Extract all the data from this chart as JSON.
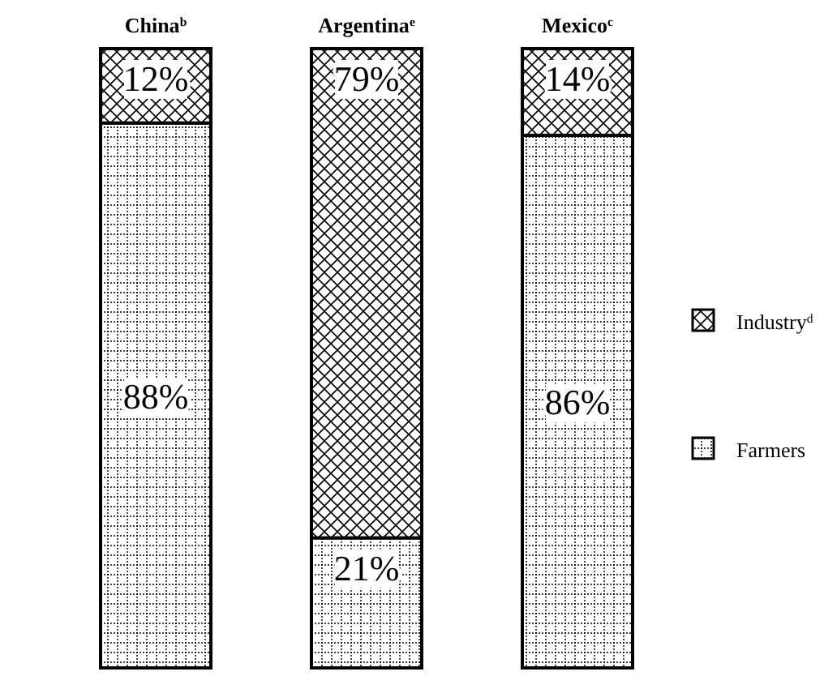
{
  "chart_data": {
    "type": "bar",
    "stacked": true,
    "categories": [
      "China$^{b}$",
      "Argentina$^{e}$",
      "Mexico$^{c}$"
    ],
    "series": [
      {
        "name": "Farmers",
        "color": "#000000",
        "values": [
          88,
          21,
          86
        ],
        "value_labels": [
          "88%",
          "21%",
          "86%"
        ]
      },
      {
        "name": "Industry$^{d}$",
        "color": "#000000",
        "values": [
          12,
          79,
          14
        ],
        "value_labels": [
          "12%",
          "79%",
          "14%"
        ]
      }
    ],
    "legend": "right"
  }
}
